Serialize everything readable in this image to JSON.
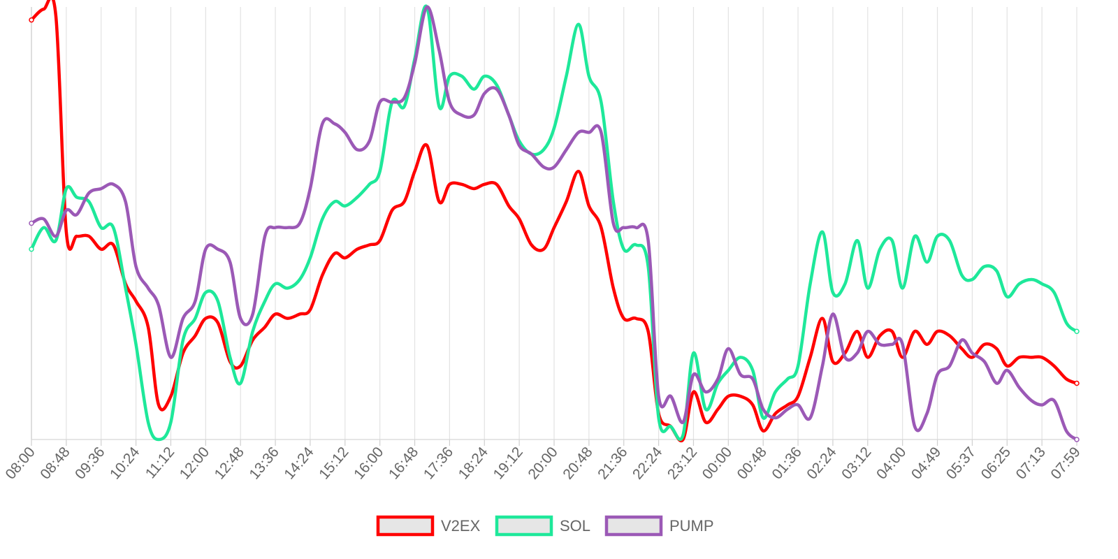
{
  "chart_data": {
    "type": "line",
    "title": "",
    "xlabel": "",
    "ylabel": "",
    "x_tick_labels": [
      "08:00",
      "08:48",
      "09:36",
      "10:24",
      "11:12",
      "12:00",
      "12:48",
      "13:36",
      "14:24",
      "15:12",
      "16:00",
      "16:48",
      "17:36",
      "18:24",
      "19:12",
      "20:00",
      "20:48",
      "21:36",
      "22:24",
      "23:12",
      "00:00",
      "00:48",
      "01:36",
      "02:24",
      "03:12",
      "04:00",
      "04:49",
      "05:37",
      "06:25",
      "07:13",
      "07:59"
    ],
    "x_range": [
      0,
      30
    ],
    "y_range": [
      0,
      100
    ],
    "y_axis_visible": false,
    "grid": {
      "vertical": true,
      "horizontal": false
    },
    "legend": {
      "position": "bottom-center"
    },
    "series": [
      {
        "name": "V2EX",
        "color": "#ff0000",
        "points": [
          [
            0,
            97
          ],
          [
            0.35,
            99.5
          ],
          [
            0.7,
            98
          ],
          [
            1,
            48
          ],
          [
            1.3,
            47
          ],
          [
            1.65,
            47
          ],
          [
            2,
            44
          ],
          [
            2.35,
            45
          ],
          [
            2.7,
            36
          ],
          [
            3,
            32
          ],
          [
            3.35,
            26
          ],
          [
            3.65,
            8
          ],
          [
            4,
            10
          ],
          [
            4.35,
            20
          ],
          [
            4.7,
            24
          ],
          [
            5,
            28
          ],
          [
            5.35,
            27
          ],
          [
            5.7,
            18
          ],
          [
            6,
            17
          ],
          [
            6.35,
            23
          ],
          [
            6.7,
            26
          ],
          [
            7,
            29
          ],
          [
            7.35,
            28
          ],
          [
            7.7,
            29
          ],
          [
            8,
            30
          ],
          [
            8.35,
            38
          ],
          [
            8.7,
            43
          ],
          [
            9,
            42
          ],
          [
            9.35,
            44
          ],
          [
            9.7,
            45
          ],
          [
            10,
            46
          ],
          [
            10.35,
            53
          ],
          [
            10.7,
            55
          ],
          [
            11,
            62
          ],
          [
            11.35,
            68
          ],
          [
            11.7,
            55
          ],
          [
            12,
            59
          ],
          [
            12.35,
            59
          ],
          [
            12.7,
            58
          ],
          [
            13,
            59
          ],
          [
            13.35,
            59
          ],
          [
            13.7,
            54
          ],
          [
            14,
            51
          ],
          [
            14.35,
            45
          ],
          [
            14.7,
            44
          ],
          [
            15,
            49
          ],
          [
            15.35,
            55
          ],
          [
            15.7,
            62
          ],
          [
            16,
            54
          ],
          [
            16.35,
            49
          ],
          [
            16.7,
            35
          ],
          [
            17,
            28
          ],
          [
            17.35,
            28
          ],
          [
            17.7,
            25
          ],
          [
            18,
            6
          ],
          [
            18.35,
            3
          ],
          [
            18.7,
            0
          ],
          [
            19,
            11
          ],
          [
            19.35,
            4
          ],
          [
            19.7,
            7
          ],
          [
            20,
            10
          ],
          [
            20.35,
            10
          ],
          [
            20.7,
            8
          ],
          [
            21,
            2
          ],
          [
            21.35,
            6
          ],
          [
            21.7,
            8
          ],
          [
            22,
            10
          ],
          [
            22.35,
            19
          ],
          [
            22.7,
            28
          ],
          [
            23,
            18
          ],
          [
            23.35,
            20
          ],
          [
            23.7,
            25
          ],
          [
            24,
            19
          ],
          [
            24.35,
            24
          ],
          [
            24.7,
            25
          ],
          [
            25,
            19
          ],
          [
            25.35,
            25
          ],
          [
            25.7,
            22
          ],
          [
            26,
            25
          ],
          [
            26.35,
            24
          ],
          [
            26.7,
            21
          ],
          [
            27,
            19
          ],
          [
            27.35,
            22
          ],
          [
            27.7,
            21
          ],
          [
            28,
            17
          ],
          [
            28.35,
            19
          ],
          [
            28.7,
            19
          ],
          [
            29,
            19
          ],
          [
            29.35,
            17
          ],
          [
            29.7,
            14
          ],
          [
            30,
            13
          ]
        ]
      },
      {
        "name": "SOL",
        "color": "#1ee89a",
        "points": [
          [
            0,
            44
          ],
          [
            0.35,
            49
          ],
          [
            0.7,
            46
          ],
          [
            1,
            58
          ],
          [
            1.3,
            56
          ],
          [
            1.65,
            55
          ],
          [
            2,
            49
          ],
          [
            2.35,
            49
          ],
          [
            2.7,
            35
          ],
          [
            3,
            22
          ],
          [
            3.35,
            4
          ],
          [
            3.65,
            0
          ],
          [
            4,
            4
          ],
          [
            4.35,
            23
          ],
          [
            4.7,
            28
          ],
          [
            5,
            34
          ],
          [
            5.35,
            32
          ],
          [
            5.7,
            19
          ],
          [
            6,
            13
          ],
          [
            6.35,
            25
          ],
          [
            6.7,
            32
          ],
          [
            7,
            36
          ],
          [
            7.35,
            35
          ],
          [
            7.7,
            37
          ],
          [
            8,
            42
          ],
          [
            8.35,
            51
          ],
          [
            8.7,
            55
          ],
          [
            9,
            54
          ],
          [
            9.35,
            56
          ],
          [
            9.7,
            59
          ],
          [
            10,
            62
          ],
          [
            10.35,
            78
          ],
          [
            10.7,
            77
          ],
          [
            11,
            88
          ],
          [
            11.35,
            100
          ],
          [
            11.7,
            77
          ],
          [
            12,
            84
          ],
          [
            12.35,
            84
          ],
          [
            12.7,
            81
          ],
          [
            13,
            84
          ],
          [
            13.35,
            82
          ],
          [
            13.7,
            75
          ],
          [
            14,
            69
          ],
          [
            14.35,
            66
          ],
          [
            14.7,
            67
          ],
          [
            15,
            72
          ],
          [
            15.35,
            84
          ],
          [
            15.7,
            96
          ],
          [
            16,
            84
          ],
          [
            16.35,
            78
          ],
          [
            16.7,
            55
          ],
          [
            17,
            44
          ],
          [
            17.35,
            45
          ],
          [
            17.7,
            40
          ],
          [
            18,
            5
          ],
          [
            18.35,
            3
          ],
          [
            18.7,
            1
          ],
          [
            19,
            20
          ],
          [
            19.35,
            7
          ],
          [
            19.7,
            13
          ],
          [
            20,
            16
          ],
          [
            20.35,
            19
          ],
          [
            20.7,
            16
          ],
          [
            21,
            5
          ],
          [
            21.35,
            11
          ],
          [
            21.7,
            14
          ],
          [
            22,
            17
          ],
          [
            22.35,
            36
          ],
          [
            22.7,
            48
          ],
          [
            23,
            34
          ],
          [
            23.35,
            36
          ],
          [
            23.7,
            46
          ],
          [
            24,
            35
          ],
          [
            24.35,
            44
          ],
          [
            24.7,
            46
          ],
          [
            25,
            35
          ],
          [
            25.35,
            47
          ],
          [
            25.7,
            41
          ],
          [
            26,
            47
          ],
          [
            26.35,
            46
          ],
          [
            26.7,
            38
          ],
          [
            27,
            37
          ],
          [
            27.35,
            40
          ],
          [
            27.7,
            39
          ],
          [
            28,
            33
          ],
          [
            28.35,
            36
          ],
          [
            28.7,
            37
          ],
          [
            29,
            36
          ],
          [
            29.35,
            34
          ],
          [
            29.7,
            27
          ],
          [
            30,
            25
          ]
        ]
      },
      {
        "name": "PUMP",
        "color": "#9b59b6",
        "points": [
          [
            0,
            50
          ],
          [
            0.35,
            51
          ],
          [
            0.7,
            47
          ],
          [
            1,
            53
          ],
          [
            1.3,
            52
          ],
          [
            1.65,
            57
          ],
          [
            2,
            58
          ],
          [
            2.35,
            59
          ],
          [
            2.7,
            55
          ],
          [
            3,
            40
          ],
          [
            3.35,
            35
          ],
          [
            3.65,
            31
          ],
          [
            4,
            19
          ],
          [
            4.35,
            28
          ],
          [
            4.7,
            32
          ],
          [
            5,
            44
          ],
          [
            5.35,
            44
          ],
          [
            5.7,
            41
          ],
          [
            6,
            28
          ],
          [
            6.35,
            29
          ],
          [
            6.7,
            47
          ],
          [
            7,
            49
          ],
          [
            7.35,
            49
          ],
          [
            7.7,
            50
          ],
          [
            8,
            58
          ],
          [
            8.35,
            73
          ],
          [
            8.7,
            73
          ],
          [
            9,
            71
          ],
          [
            9.35,
            67
          ],
          [
            9.7,
            69
          ],
          [
            10,
            78
          ],
          [
            10.35,
            78
          ],
          [
            10.7,
            79
          ],
          [
            11,
            87
          ],
          [
            11.35,
            100
          ],
          [
            11.7,
            90
          ],
          [
            12,
            78
          ],
          [
            12.35,
            75
          ],
          [
            12.7,
            75
          ],
          [
            13,
            80
          ],
          [
            13.35,
            81
          ],
          [
            13.7,
            75
          ],
          [
            14,
            68
          ],
          [
            14.35,
            66
          ],
          [
            14.7,
            63
          ],
          [
            15,
            63
          ],
          [
            15.35,
            67
          ],
          [
            15.7,
            71
          ],
          [
            16,
            71
          ],
          [
            16.35,
            71
          ],
          [
            16.7,
            50
          ],
          [
            17,
            49
          ],
          [
            17.35,
            49
          ],
          [
            17.7,
            46
          ],
          [
            18,
            10
          ],
          [
            18.35,
            10
          ],
          [
            18.7,
            4
          ],
          [
            19,
            15
          ],
          [
            19.35,
            11
          ],
          [
            19.7,
            14
          ],
          [
            20,
            21
          ],
          [
            20.35,
            15
          ],
          [
            20.7,
            14
          ],
          [
            21,
            7
          ],
          [
            21.35,
            5
          ],
          [
            21.7,
            7
          ],
          [
            22,
            8
          ],
          [
            22.35,
            5
          ],
          [
            22.7,
            17
          ],
          [
            23,
            29
          ],
          [
            23.35,
            19
          ],
          [
            23.7,
            20
          ],
          [
            24,
            25
          ],
          [
            24.35,
            22
          ],
          [
            24.7,
            22
          ],
          [
            25,
            22
          ],
          [
            25.35,
            3
          ],
          [
            25.7,
            6
          ],
          [
            26,
            15
          ],
          [
            26.35,
            17
          ],
          [
            26.7,
            23
          ],
          [
            27,
            20
          ],
          [
            27.35,
            18
          ],
          [
            27.7,
            13
          ],
          [
            28,
            16
          ],
          [
            28.35,
            12
          ],
          [
            28.7,
            9
          ],
          [
            29,
            8
          ],
          [
            29.35,
            9
          ],
          [
            29.7,
            2
          ],
          [
            30,
            0
          ]
        ]
      }
    ]
  }
}
